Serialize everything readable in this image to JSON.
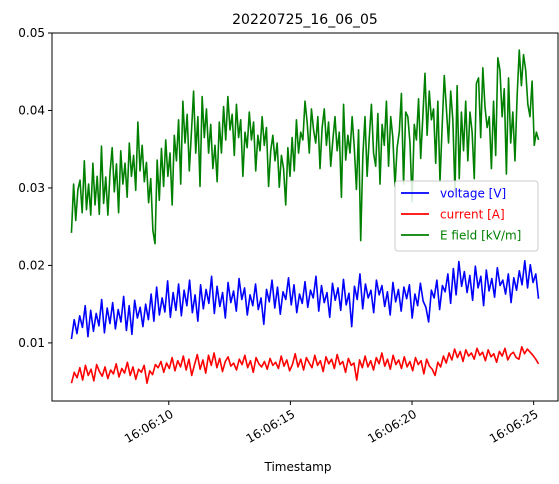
{
  "chart_data": {
    "type": "line",
    "title": "20220725_16_06_05",
    "xlabel": "Timestamp",
    "ylabel": "",
    "x_range_seconds": [
      6.0,
      25.2
    ],
    "xlim_seconds": [
      5.2,
      26.0
    ],
    "xtick_values_seconds": [
      10,
      15,
      20,
      25
    ],
    "xtick_labels": [
      "16:06:10",
      "16:06:15",
      "16:06:20",
      "16:06:25"
    ],
    "ylim": [
      0.0025,
      0.05
    ],
    "yticks": [
      0.01,
      0.02,
      0.03,
      0.04,
      0.05
    ],
    "ytick_labels": [
      "0.01",
      "0.02",
      "0.03",
      "0.04",
      "0.05"
    ],
    "legend_position": "center-right",
    "series": [
      {
        "name": "voltage [V]",
        "color": "#0000ff",
        "values": [
          0.0105,
          0.013,
          0.0112,
          0.0135,
          0.012,
          0.0148,
          0.0108,
          0.0142,
          0.0115,
          0.0138,
          0.0122,
          0.0156,
          0.0113,
          0.0145,
          0.0125,
          0.0152,
          0.0118,
          0.0143,
          0.0127,
          0.016,
          0.0116,
          0.0148,
          0.0111,
          0.0155,
          0.0132,
          0.0146,
          0.0121,
          0.015,
          0.013,
          0.0163,
          0.0128,
          0.0172,
          0.0136,
          0.0158,
          0.014,
          0.018,
          0.0133,
          0.0165,
          0.0142,
          0.0176,
          0.0135,
          0.0168,
          0.0148,
          0.0181,
          0.0139,
          0.0162,
          0.0128,
          0.0175,
          0.0144,
          0.0169,
          0.0151,
          0.0186,
          0.0138,
          0.0173,
          0.0147,
          0.0165,
          0.0132,
          0.0178,
          0.0152,
          0.0167,
          0.0141,
          0.0183,
          0.0156,
          0.0171,
          0.0136,
          0.0162,
          0.0148,
          0.0176,
          0.0143,
          0.0158,
          0.0124,
          0.0169,
          0.0153,
          0.0181,
          0.0145,
          0.0172,
          0.0137,
          0.0166,
          0.0156,
          0.0184,
          0.0149,
          0.0175,
          0.0139,
          0.0163,
          0.0151,
          0.0179,
          0.0146,
          0.0168,
          0.0158,
          0.0186,
          0.0141,
          0.0174,
          0.0152,
          0.0165,
          0.0133,
          0.0177,
          0.0155,
          0.0171,
          0.0142,
          0.0182,
          0.0149,
          0.0164,
          0.0121,
          0.0173,
          0.0156,
          0.0189,
          0.0144,
          0.0176,
          0.0158,
          0.0168,
          0.0139,
          0.0181,
          0.0162,
          0.0174,
          0.0147,
          0.0166,
          0.0136,
          0.0178,
          0.0153,
          0.0169,
          0.0141,
          0.0172,
          0.0157,
          0.0175,
          0.0132,
          0.0163,
          0.0148,
          0.0177,
          0.0154,
          0.0146,
          0.0127,
          0.0168,
          0.0158,
          0.0181,
          0.0143,
          0.0174,
          0.0166,
          0.0189,
          0.0151,
          0.0196,
          0.0162,
          0.0205,
          0.0173,
          0.0192,
          0.0165,
          0.0187,
          0.0155,
          0.0199,
          0.0171,
          0.0186,
          0.0148,
          0.0194,
          0.0167,
          0.0183,
          0.0159,
          0.0197,
          0.0174,
          0.0181,
          0.0163,
          0.0189,
          0.0152,
          0.0184,
          0.0168,
          0.0193,
          0.0175,
          0.0206,
          0.0171,
          0.0201,
          0.0178,
          0.0189,
          0.0157
        ]
      },
      {
        "name": "current [A]",
        "color": "#ff0000",
        "values": [
          0.0048,
          0.0062,
          0.0055,
          0.0068,
          0.0052,
          0.0071,
          0.0058,
          0.0066,
          0.0051,
          0.0072,
          0.0063,
          0.0057,
          0.0069,
          0.0054,
          0.0065,
          0.006,
          0.0073,
          0.0056,
          0.0067,
          0.0061,
          0.0075,
          0.0058,
          0.0069,
          0.0053,
          0.0066,
          0.0062,
          0.0071,
          0.0048,
          0.0064,
          0.0059,
          0.0072,
          0.0068,
          0.0076,
          0.0062,
          0.0074,
          0.0067,
          0.0081,
          0.0064,
          0.0077,
          0.0069,
          0.0083,
          0.0065,
          0.0079,
          0.0058,
          0.0072,
          0.0085,
          0.0066,
          0.0078,
          0.0061,
          0.0084,
          0.0071,
          0.0087,
          0.0068,
          0.008,
          0.0063,
          0.0076,
          0.0082,
          0.007,
          0.0074,
          0.0065,
          0.0079,
          0.0072,
          0.0084,
          0.0068,
          0.0077,
          0.0062,
          0.0081,
          0.0073,
          0.0069,
          0.0076,
          0.0066,
          0.008,
          0.0071,
          0.0075,
          0.0067,
          0.0083,
          0.007,
          0.0078,
          0.0064,
          0.0072,
          0.0086,
          0.0069,
          0.0079,
          0.0065,
          0.0081,
          0.0074,
          0.0068,
          0.0084,
          0.0071,
          0.0077,
          0.0063,
          0.0082,
          0.0073,
          0.0079,
          0.0067,
          0.0085,
          0.0072,
          0.0076,
          0.0062,
          0.008,
          0.0071,
          0.0074,
          0.0052,
          0.0078,
          0.0068,
          0.0083,
          0.0069,
          0.0077,
          0.0065,
          0.0081,
          0.0073,
          0.0087,
          0.007,
          0.0079,
          0.0066,
          0.0084,
          0.0072,
          0.0078,
          0.0067,
          0.0082,
          0.0069,
          0.0076,
          0.0064,
          0.0081,
          0.0072,
          0.0077,
          0.006,
          0.0079,
          0.007,
          0.0066,
          0.0058,
          0.0075,
          0.0069,
          0.0083,
          0.0074,
          0.0087,
          0.0078,
          0.0092,
          0.0081,
          0.0089,
          0.0076,
          0.0091,
          0.0083,
          0.0087,
          0.0079,
          0.0093,
          0.0084,
          0.0088,
          0.0077,
          0.0091,
          0.0082,
          0.0086,
          0.0075,
          0.0089,
          0.0083,
          0.0093,
          0.0078,
          0.0085,
          0.0088,
          0.0081,
          0.0079,
          0.0095,
          0.0086,
          0.0092,
          0.0088,
          0.0084,
          0.0079,
          0.0073
        ]
      },
      {
        "name": "E field [kV/m]",
        "color": "#008000",
        "values": [
          0.0242,
          0.0305,
          0.0258,
          0.0298,
          0.031,
          0.0268,
          0.0335,
          0.0272,
          0.0305,
          0.0265,
          0.0332,
          0.0278,
          0.0315,
          0.0266,
          0.0354,
          0.028,
          0.0314,
          0.0265,
          0.032,
          0.0352,
          0.0295,
          0.0331,
          0.0268,
          0.0348,
          0.0305,
          0.0332,
          0.0288,
          0.0358,
          0.0315,
          0.0342,
          0.0297,
          0.0385,
          0.0322,
          0.0355,
          0.0308,
          0.0333,
          0.0281,
          0.0312,
          0.0245,
          0.0228,
          0.0336,
          0.0284,
          0.0351,
          0.0302,
          0.0362,
          0.0315,
          0.0345,
          0.0278,
          0.0368,
          0.0335,
          0.0388,
          0.0305,
          0.0412,
          0.0358,
          0.0395,
          0.0322,
          0.0372,
          0.0425,
          0.0345,
          0.0392,
          0.0302,
          0.0418,
          0.0365,
          0.0402,
          0.0345,
          0.0382,
          0.0325,
          0.0355,
          0.0308,
          0.0385,
          0.0345,
          0.0405,
          0.0362,
          0.0418,
          0.0375,
          0.0395,
          0.0342,
          0.0408,
          0.0365,
          0.0388,
          0.0315,
          0.0372,
          0.0352,
          0.0398,
          0.0362,
          0.0385,
          0.0322,
          0.0368,
          0.0348,
          0.0392,
          0.0355,
          0.0378,
          0.0302,
          0.0348,
          0.0368,
          0.0335,
          0.0358,
          0.0301,
          0.0342,
          0.0325,
          0.0278,
          0.0352,
          0.0315,
          0.0365,
          0.0322,
          0.0388,
          0.0345,
          0.0372,
          0.0362,
          0.0412,
          0.0385,
          0.0345,
          0.0402,
          0.0375,
          0.0358,
          0.0392,
          0.0325,
          0.0378,
          0.0402,
          0.0355,
          0.0385,
          0.0328,
          0.0362,
          0.0392,
          0.0348,
          0.0372,
          0.0288,
          0.0408,
          0.0336,
          0.0368,
          0.0345,
          0.0392,
          0.0352,
          0.0298,
          0.0375,
          0.0232,
          0.0342,
          0.0392,
          0.0315,
          0.0365,
          0.0408,
          0.0345,
          0.0328,
          0.0396,
          0.0305,
          0.0382,
          0.0355,
          0.0412,
          0.0328,
          0.0392,
          0.0365,
          0.0302,
          0.0352,
          0.0372,
          0.0422,
          0.0305,
          0.0398,
          0.0392,
          0.0358,
          0.0282,
          0.0382,
          0.0362,
          0.0415,
          0.0338,
          0.0392,
          0.0448,
          0.0368,
          0.0425,
          0.0388,
          0.0402,
          0.0332,
          0.0412,
          0.0308,
          0.0378,
          0.0445,
          0.0402,
          0.0358,
          0.0425,
          0.0388,
          0.0295,
          0.0432,
          0.0312,
          0.0398,
          0.0348,
          0.0412,
          0.0335,
          0.0398,
          0.0372,
          0.0312,
          0.0435,
          0.0442,
          0.0365,
          0.0455,
          0.0405,
          0.0378,
          0.0392,
          0.0325,
          0.0412,
          0.0342,
          0.0468,
          0.0452,
          0.0392,
          0.0428,
          0.0318,
          0.0442,
          0.0358,
          0.0398,
          0.0335,
          0.0418,
          0.0478,
          0.0432,
          0.0472,
          0.0452,
          0.0408,
          0.0392,
          0.0438,
          0.0355,
          0.0372,
          0.0362
        ]
      }
    ]
  }
}
